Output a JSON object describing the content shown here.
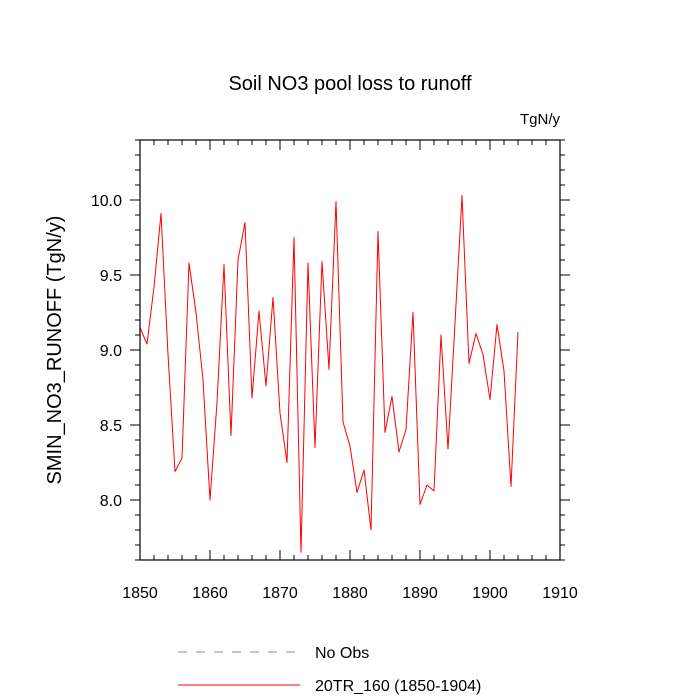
{
  "chart_data": {
    "type": "line",
    "title": "Soil NO3 pool loss to runoff",
    "units": "TgN/y",
    "ylabel": "SMIN_NO3_RUNOFF  (TgN/y)",
    "xlabel": "",
    "xlim": [
      1850,
      1910
    ],
    "ylim": [
      7.6,
      10.4
    ],
    "x_ticks": [
      1850,
      1860,
      1870,
      1880,
      1890,
      1900,
      1910
    ],
    "x_tick_labels": [
      "1850",
      "1860",
      "1870",
      "1880",
      "1890",
      "1900",
      "1910"
    ],
    "y_ticks": [
      8.0,
      8.5,
      9.0,
      9.5,
      10.0
    ],
    "y_tick_labels": [
      "8.0",
      "8.5",
      "9.0",
      "9.5",
      "10.0"
    ],
    "grid": false,
    "series": [
      {
        "name": "20TR_160 (1850-1904)",
        "color": "#ff0000",
        "style": "solid",
        "x": [
          1850,
          1851,
          1852,
          1853,
          1854,
          1855,
          1856,
          1857,
          1858,
          1859,
          1860,
          1861,
          1862,
          1863,
          1864,
          1865,
          1866,
          1867,
          1868,
          1869,
          1870,
          1871,
          1872,
          1873,
          1874,
          1875,
          1876,
          1877,
          1878,
          1879,
          1880,
          1881,
          1882,
          1883,
          1884,
          1885,
          1886,
          1887,
          1888,
          1889,
          1890,
          1891,
          1892,
          1893,
          1894,
          1895,
          1896,
          1897,
          1898,
          1899,
          1900,
          1901,
          1902,
          1903,
          1904
        ],
        "values": [
          9.15,
          9.04,
          9.42,
          9.91,
          8.97,
          8.19,
          8.28,
          9.58,
          9.25,
          8.8,
          8.0,
          8.65,
          9.57,
          8.43,
          9.6,
          9.85,
          8.68,
          9.26,
          8.76,
          9.35,
          8.58,
          8.25,
          9.75,
          7.65,
          9.58,
          8.35,
          9.59,
          8.87,
          9.99,
          8.52,
          8.36,
          8.05,
          8.2,
          7.8,
          9.79,
          8.45,
          8.69,
          8.32,
          8.47,
          9.25,
          7.97,
          8.1,
          8.06,
          9.1,
          8.34,
          9.18,
          10.03,
          8.91,
          9.11,
          8.97,
          8.67,
          9.17,
          8.86,
          8.09,
          9.12
        ]
      },
      {
        "name": "No Obs",
        "color": "#8080ff",
        "style": "dashed",
        "x": [],
        "values": []
      }
    ],
    "legend": [
      {
        "label": "No Obs",
        "color": "#8080ff",
        "style": "dashed"
      },
      {
        "label": "20TR_160 (1850-1904)",
        "color": "#ff0000",
        "style": "solid"
      }
    ],
    "legend_position": "bottom"
  }
}
